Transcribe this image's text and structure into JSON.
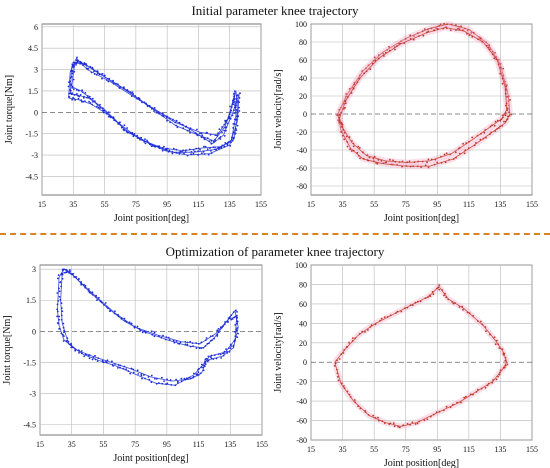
{
  "titles": {
    "top": "Initial parameter knee trajectory",
    "bottom": "Optimization of parameter knee trajectory"
  },
  "colors": {
    "torque_series": "#1f2fd6",
    "velocity_series": "#c0392b",
    "velocity_halo": "#f4a6c8",
    "divider": "#d98324"
  },
  "chart_data": [
    {
      "id": "top-left",
      "type": "scatter",
      "xlabel": "Joint position[deg]",
      "ylabel": "Joint torque[Nm]",
      "xlim": [
        15,
        155
      ],
      "ylim": [
        -5.8,
        6.2
      ],
      "xticks": [
        15,
        35,
        55,
        75,
        95,
        115,
        135,
        155
      ],
      "yticks": [
        -4.5,
        -3,
        -1.5,
        0,
        1.5,
        3,
        4.5,
        6
      ],
      "ytick_labels": [
        "-4.5",
        "-3",
        "-1.5",
        "0",
        "1.5",
        "3",
        "4.5",
        "6"
      ],
      "grid": true,
      "zero_dashed": true,
      "loops": [
        [
          [
            33,
            1.3
          ],
          [
            34,
            3.2
          ],
          [
            38,
            3.6
          ],
          [
            45,
            3.2
          ],
          [
            55,
            2.5
          ],
          [
            70,
            1.5
          ],
          [
            85,
            0.3
          ],
          [
            100,
            -0.9
          ],
          [
            115,
            -1.6
          ],
          [
            125,
            -2.0
          ],
          [
            132,
            -1.0
          ],
          [
            136,
            0.3
          ],
          [
            139,
            1.5
          ],
          [
            140,
            0.0
          ],
          [
            138,
            -1.8
          ],
          [
            130,
            -2.4
          ],
          [
            118,
            -2.5
          ],
          [
            105,
            -2.7
          ],
          [
            92,
            -2.5
          ],
          [
            80,
            -2.0
          ],
          [
            68,
            -1.2
          ],
          [
            55,
            0.2
          ],
          [
            45,
            1.0
          ],
          [
            38,
            1.2
          ],
          [
            33,
            1.3
          ]
        ],
        [
          [
            34,
            1.8
          ],
          [
            36,
            3.5
          ],
          [
            42,
            3.4
          ],
          [
            52,
            2.7
          ],
          [
            68,
            1.6
          ],
          [
            84,
            0.4
          ],
          [
            100,
            -0.7
          ],
          [
            116,
            -1.4
          ],
          [
            127,
            -1.6
          ],
          [
            134,
            -0.5
          ],
          [
            138,
            1.2
          ],
          [
            139,
            -0.2
          ],
          [
            136,
            -2.0
          ],
          [
            126,
            -2.6
          ],
          [
            112,
            -2.8
          ],
          [
            98,
            -2.8
          ],
          [
            86,
            -2.3
          ],
          [
            74,
            -1.6
          ],
          [
            60,
            -0.4
          ],
          [
            48,
            0.8
          ],
          [
            40,
            1.5
          ],
          [
            34,
            1.8
          ]
        ],
        [
          [
            32,
            1.0
          ],
          [
            33,
            2.8
          ],
          [
            37,
            3.8
          ],
          [
            44,
            3.0
          ],
          [
            58,
            2.2
          ],
          [
            75,
            1.0
          ],
          [
            92,
            -0.1
          ],
          [
            110,
            -1.2
          ],
          [
            124,
            -2.2
          ],
          [
            131,
            -1.6
          ],
          [
            137,
            0.0
          ],
          [
            141,
            1.3
          ],
          [
            140,
            -0.6
          ],
          [
            135,
            -2.3
          ],
          [
            122,
            -2.9
          ],
          [
            108,
            -3.0
          ],
          [
            94,
            -2.7
          ],
          [
            82,
            -2.1
          ],
          [
            70,
            -1.4
          ],
          [
            58,
            -0.2
          ],
          [
            46,
            0.6
          ],
          [
            38,
            0.9
          ],
          [
            32,
            1.0
          ]
        ]
      ]
    },
    {
      "id": "top-right",
      "type": "scatter",
      "xlabel": "Joint position[deg]",
      "ylabel": "Joint velocity[rad/s]",
      "xlim": [
        15,
        155
      ],
      "ylim": [
        -90,
        100
      ],
      "xticks": [
        15,
        35,
        55,
        75,
        95,
        115,
        135,
        155
      ],
      "yticks": [
        -80,
        -60,
        -40,
        -20,
        0,
        20,
        40,
        60,
        80,
        100
      ],
      "ytick_labels": [
        "-80",
        "-60",
        "-40",
        "-20",
        "0",
        "20",
        "40",
        "60",
        "80",
        "100"
      ],
      "grid": true,
      "zero_dashed": true,
      "loops": [
        [
          [
            32,
            0
          ],
          [
            38,
            22
          ],
          [
            48,
            48
          ],
          [
            60,
            68
          ],
          [
            75,
            84
          ],
          [
            90,
            95
          ],
          [
            102,
            100
          ],
          [
            115,
            94
          ],
          [
            127,
            78
          ],
          [
            135,
            55
          ],
          [
            140,
            20
          ],
          [
            141,
            0
          ],
          [
            138,
            -10
          ],
          [
            130,
            -20
          ],
          [
            118,
            -35
          ],
          [
            105,
            -50
          ],
          [
            90,
            -58
          ],
          [
            75,
            -58
          ],
          [
            60,
            -55
          ],
          [
            48,
            -50
          ],
          [
            40,
            -38
          ],
          [
            34,
            -18
          ],
          [
            32,
            0
          ]
        ],
        [
          [
            33,
            -5
          ],
          [
            37,
            15
          ],
          [
            46,
            40
          ],
          [
            58,
            62
          ],
          [
            72,
            78
          ],
          [
            88,
            90
          ],
          [
            100,
            96
          ],
          [
            112,
            92
          ],
          [
            124,
            80
          ],
          [
            133,
            60
          ],
          [
            138,
            30
          ],
          [
            139,
            5
          ],
          [
            136,
            -5
          ],
          [
            128,
            -15
          ],
          [
            116,
            -30
          ],
          [
            104,
            -44
          ],
          [
            90,
            -52
          ],
          [
            76,
            -54
          ],
          [
            62,
            -52
          ],
          [
            50,
            -46
          ],
          [
            41,
            -32
          ],
          [
            35,
            -15
          ],
          [
            33,
            -5
          ]
        ]
      ]
    },
    {
      "id": "bottom-left",
      "type": "scatter",
      "xlabel": "Joint position[deg]",
      "ylabel": "Joint torque[Nm]",
      "xlim": [
        15,
        155
      ],
      "ylim": [
        -5.0,
        3.2
      ],
      "xticks": [
        15,
        35,
        55,
        75,
        95,
        115,
        135,
        155
      ],
      "yticks": [
        -4.5,
        -3,
        -1.5,
        0,
        1.5,
        3
      ],
      "ytick_labels": [
        "-4.5",
        "-3",
        "-1.5",
        "0",
        "1.5",
        "3"
      ],
      "grid": true,
      "zero_dashed": true,
      "loops": [
        [
          [
            26,
            1.0
          ],
          [
            27,
            2.6
          ],
          [
            30,
            3.0
          ],
          [
            36,
            2.7
          ],
          [
            45,
            2.0
          ],
          [
            55,
            1.3
          ],
          [
            68,
            0.5
          ],
          [
            80,
            0.0
          ],
          [
            95,
            -0.4
          ],
          [
            108,
            -0.7
          ],
          [
            118,
            -0.8
          ],
          [
            125,
            -0.3
          ],
          [
            132,
            0.4
          ],
          [
            138,
            1.0
          ],
          [
            140,
            0.2
          ],
          [
            137,
            -0.8
          ],
          [
            130,
            -1.2
          ],
          [
            120,
            -1.4
          ],
          [
            117,
            -2.0
          ],
          [
            110,
            -2.3
          ],
          [
            98,
            -2.4
          ],
          [
            85,
            -2.2
          ],
          [
            72,
            -1.8
          ],
          [
            60,
            -1.5
          ],
          [
            48,
            -1.2
          ],
          [
            38,
            -0.9
          ],
          [
            30,
            -0.4
          ],
          [
            27,
            0.3
          ],
          [
            26,
            1.0
          ]
        ],
        [
          [
            28,
            1.5
          ],
          [
            29,
            2.8
          ],
          [
            33,
            2.9
          ],
          [
            40,
            2.4
          ],
          [
            50,
            1.7
          ],
          [
            62,
            0.9
          ],
          [
            75,
            0.2
          ],
          [
            90,
            -0.2
          ],
          [
            104,
            -0.5
          ],
          [
            116,
            -0.6
          ],
          [
            126,
            -0.1
          ],
          [
            134,
            0.6
          ],
          [
            139,
            0.7
          ],
          [
            138,
            -0.4
          ],
          [
            132,
            -1.0
          ],
          [
            122,
            -1.2
          ],
          [
            118,
            -1.6
          ],
          [
            112,
            -2.1
          ],
          [
            100,
            -2.6
          ],
          [
            88,
            -2.5
          ],
          [
            76,
            -2.1
          ],
          [
            64,
            -1.7
          ],
          [
            52,
            -1.4
          ],
          [
            42,
            -1.1
          ],
          [
            33,
            -0.6
          ],
          [
            29,
            0.4
          ],
          [
            28,
            1.5
          ]
        ]
      ]
    },
    {
      "id": "bottom-right",
      "type": "scatter",
      "xlabel": "Joint position[deg]",
      "ylabel": "Joint velocity[rad/s]",
      "xlim": [
        15,
        155
      ],
      "ylim": [
        -80,
        100
      ],
      "xticks": [
        15,
        35,
        55,
        75,
        95,
        115,
        135,
        155
      ],
      "yticks": [
        -80,
        -60,
        -40,
        -20,
        0,
        20,
        40,
        60,
        80,
        100
      ],
      "ytick_labels": [
        "-80",
        "-60",
        "-40",
        "-20",
        "0",
        "20",
        "40",
        "60",
        "80",
        "100"
      ],
      "grid": true,
      "zero_dashed": true,
      "loops": [
        [
          [
            30,
            0
          ],
          [
            34,
            -22
          ],
          [
            42,
            -40
          ],
          [
            52,
            -55
          ],
          [
            62,
            -62
          ],
          [
            72,
            -66
          ],
          [
            82,
            -62
          ],
          [
            95,
            -52
          ],
          [
            108,
            -42
          ],
          [
            120,
            -30
          ],
          [
            130,
            -20
          ],
          [
            136,
            -8
          ],
          [
            139,
            0
          ],
          [
            137,
            10
          ],
          [
            132,
            22
          ],
          [
            124,
            38
          ],
          [
            112,
            55
          ],
          [
            102,
            65
          ],
          [
            96,
            78
          ],
          [
            90,
            68
          ],
          [
            80,
            60
          ],
          [
            68,
            50
          ],
          [
            56,
            40
          ],
          [
            45,
            28
          ],
          [
            37,
            14
          ],
          [
            30,
            0
          ]
        ]
      ]
    }
  ]
}
